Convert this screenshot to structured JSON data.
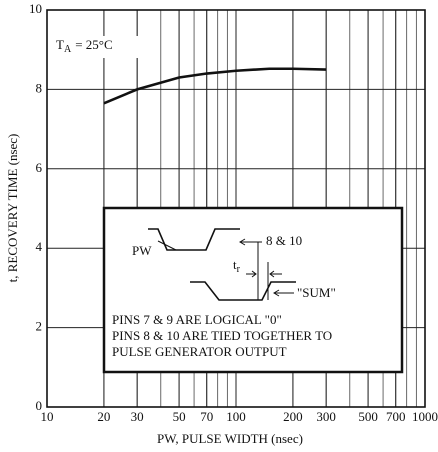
{
  "chart_data": {
    "type": "line",
    "x_label": "PW, PULSE WIDTH (nsec)",
    "y_label": "t, RECOVERY TIME (nsec)",
    "x": [
      20,
      30,
      50,
      70,
      100,
      150,
      200,
      300
    ],
    "series": [
      {
        "color": "#111111",
        "values": [
          7.65,
          8.0,
          8.3,
          8.4,
          8.47,
          8.52,
          8.52,
          8.5
        ]
      }
    ],
    "xlim": [
      10,
      1000
    ],
    "ylim": [
      0,
      10
    ],
    "log_x": true,
    "grid": true,
    "xticks": [
      10,
      20,
      30,
      50,
      70,
      100,
      200,
      300,
      500,
      700,
      1000
    ],
    "yticks": [
      0,
      2,
      4,
      6,
      8,
      10
    ],
    "condition": {
      "symbol": "T",
      "subscript": "A",
      "text": "= 25°C"
    },
    "diagram": {
      "pw_label": "PW",
      "tr_symbol": "t",
      "tr_subscript": "r",
      "input_label": "8 & 10",
      "output_label": "\"SUM\"",
      "notes": [
        "PINS 7 & 9 ARE LOGICAL \"0\"",
        "PINS 8 & 10 ARE TIED TOGETHER TO",
        "PULSE GENERATOR OUTPUT"
      ]
    }
  }
}
